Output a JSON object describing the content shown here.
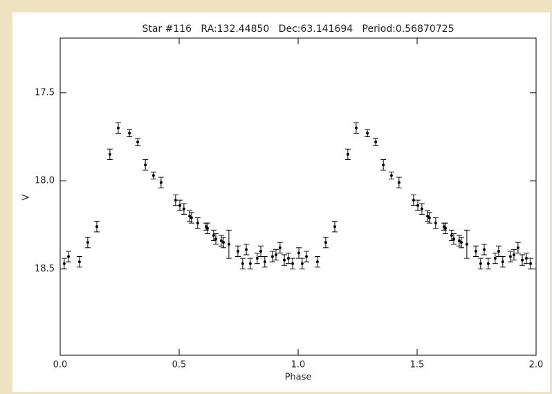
{
  "chart_data": {
    "type": "errorbar-scatter",
    "title": "Star #116   RA:132.44850   Dec:63.141694   Period:0.56870725",
    "x_label": "Phase",
    "y_label": "V",
    "xlim": [
      0,
      2
    ],
    "ylim": [
      18.99,
      17.19
    ],
    "xticks": [
      {
        "value": 0,
        "label": "0.0"
      },
      {
        "value": 0.5,
        "label": "0.5"
      },
      {
        "value": 1,
        "label": "1.0"
      },
      {
        "value": 1.5,
        "label": "1.5"
      },
      {
        "value": 2,
        "label": "2.0"
      }
    ],
    "yticks": [
      17.5,
      {
        "value": 18,
        "label": "18.0"
      },
      18.5
    ],
    "color": "#000000",
    "x": [
      0.017,
      0.035,
      0.081,
      0.116,
      0.154,
      0.209,
      0.244,
      0.291,
      0.326,
      0.358,
      0.392,
      0.424,
      0.485,
      0.503,
      0.52,
      0.544,
      0.552,
      0.578,
      0.613,
      0.619,
      0.645,
      0.654,
      0.677,
      0.686,
      0.709,
      0.747,
      0.767,
      0.782,
      0.799,
      0.828,
      0.843,
      0.86,
      0.892,
      0.907,
      0.924,
      0.942,
      0.959,
      0.977,
      1.003,
      1.017,
      1.035,
      1.081,
      1.116,
      1.154,
      1.209,
      1.244,
      1.291,
      1.326,
      1.358,
      1.392,
      1.424,
      1.485,
      1.503,
      1.52,
      1.544,
      1.552,
      1.578,
      1.613,
      1.619,
      1.645,
      1.654,
      1.677,
      1.686,
      1.709,
      1.747,
      1.767,
      1.782,
      1.799,
      1.828,
      1.843,
      1.86,
      1.892,
      1.907,
      1.924,
      1.942,
      1.959,
      1.977
    ],
    "values": [
      18.47,
      18.43,
      18.46,
      18.35,
      18.26,
      17.85,
      17.7,
      17.73,
      17.78,
      17.91,
      17.97,
      18.01,
      18.11,
      18.14,
      18.16,
      18.2,
      18.21,
      18.24,
      18.26,
      18.27,
      18.31,
      18.33,
      18.34,
      18.35,
      18.36,
      18.4,
      18.47,
      18.39,
      18.47,
      18.44,
      18.4,
      18.46,
      18.43,
      18.42,
      18.38,
      18.45,
      18.44,
      18.47,
      18.41,
      18.47,
      18.43,
      18.46,
      18.35,
      18.26,
      17.85,
      17.7,
      17.73,
      17.78,
      17.91,
      17.97,
      18.01,
      18.11,
      18.14,
      18.16,
      18.2,
      18.21,
      18.24,
      18.26,
      18.27,
      18.31,
      18.33,
      18.34,
      18.35,
      18.36,
      18.4,
      18.47,
      18.39,
      18.47,
      18.44,
      18.4,
      18.46,
      18.43,
      18.42,
      18.38,
      18.45,
      18.44,
      18.47
    ],
    "errors": [
      0.03,
      0.03,
      0.03,
      0.03,
      0.03,
      0.03,
      0.03,
      0.02,
      0.02,
      0.03,
      0.02,
      0.03,
      0.03,
      0.03,
      0.03,
      0.03,
      0.03,
      0.03,
      0.02,
      0.03,
      0.03,
      0.03,
      0.03,
      0.03,
      0.08,
      0.03,
      0.03,
      0.03,
      0.03,
      0.03,
      0.03,
      0.03,
      0.03,
      0.03,
      0.03,
      0.03,
      0.03,
      0.03,
      0.03,
      0.03,
      0.03,
      0.03,
      0.03,
      0.03,
      0.03,
      0.03,
      0.02,
      0.02,
      0.03,
      0.02,
      0.03,
      0.03,
      0.03,
      0.03,
      0.03,
      0.03,
      0.03,
      0.02,
      0.03,
      0.03,
      0.03,
      0.03,
      0.03,
      0.08,
      0.03,
      0.03,
      0.03,
      0.03,
      0.03,
      0.03,
      0.03,
      0.03,
      0.03,
      0.03,
      0.03,
      0.03,
      0.03
    ]
  }
}
